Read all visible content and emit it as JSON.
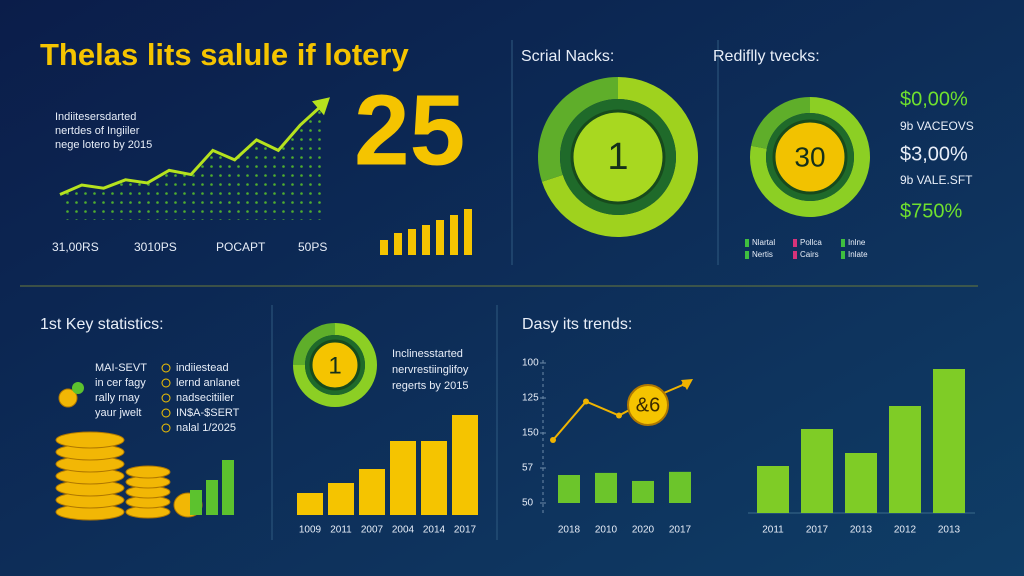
{
  "title": "Thelas lits salule if lotery",
  "hero_number": "25",
  "key_stats": {
    "title": "1st Key statistics:",
    "left": [
      "MAI-SEVT",
      "in cer fagy",
      "rally rnay",
      "yaur jwelt"
    ],
    "right": [
      "indiiestead",
      "lernd anlanet",
      "nadsecitiiler",
      "IN$A-$SERT",
      "nalal 1/2025"
    ]
  },
  "chart_data": [
    {
      "type": "line",
      "text": [
        "Indiitesersdarted",
        "nertdes of Ingiiler",
        "nege lotero by 2015"
      ],
      "values": [
        10,
        19,
        16,
        24,
        21,
        33,
        29,
        52,
        43,
        62,
        52,
        76,
        95
      ],
      "ylim": [
        0,
        100
      ],
      "x_labels": [
        "31,00RS",
        "3010PS",
        "POCAPT",
        "50PS"
      ],
      "color": "#b6e21e"
    },
    {
      "type": "bar",
      "values": [
        15,
        22,
        26,
        30,
        35,
        40,
        46
      ],
      "ylim": [
        0,
        50
      ],
      "color": "#f5c400"
    },
    {
      "type": "donut",
      "title": "Scrial Nacks:",
      "center_label": "1",
      "values": [
        70,
        30
      ],
      "colors": [
        "#9fd21e",
        "#5fae2a"
      ]
    },
    {
      "type": "donut",
      "title": "Rediflly tvecks:",
      "center_label": "30",
      "values": [
        78,
        22
      ],
      "colors": [
        "#8ccf24",
        "#5fae2a"
      ],
      "side_labels": [
        "$0,00%",
        "9b VACEOVS",
        "$3,00%",
        "9b VALE.SFT",
        "$750%"
      ],
      "legend": [
        {
          "name": "Nlartal",
          "color": "#3fbf3f"
        },
        {
          "name": "Pollca",
          "color": "#d6337a"
        },
        {
          "name": "Inlne",
          "color": "#3fbf3f"
        },
        {
          "name": "Nertis",
          "color": "#3fbf3f"
        },
        {
          "name": "Cairs",
          "color": "#d6337a"
        },
        {
          "name": "Inlate",
          "color": "#3fbf3f"
        }
      ]
    },
    {
      "type": "bar",
      "values": [
        25,
        35,
        55
      ],
      "ylim": [
        0,
        60
      ],
      "color": "#5cc22e"
    },
    {
      "type": "donut",
      "center_label": "1",
      "values": [
        75,
        25
      ],
      "colors": [
        "#8ccf24",
        "#5fae2a"
      ],
      "text": [
        "Inclinesstarted",
        "nervrestiinglifoy",
        "regerts by 2015"
      ]
    },
    {
      "type": "bar",
      "categories": [
        "1009",
        "2011",
        "2007",
        "2004",
        "2014",
        "2017"
      ],
      "values": [
        22,
        32,
        46,
        74,
        74,
        100
      ],
      "ylim": [
        0,
        100
      ],
      "color": "#f5c400"
    },
    {
      "type": "combo",
      "title": "Dasy its trends:",
      "annotation": "&6",
      "ylim": [
        -0.25,
        4
      ],
      "yticks": [
        {
          "value": 4,
          "label": "100"
        },
        {
          "value": 3,
          "label": "125"
        },
        {
          "value": 2,
          "label": "150"
        },
        {
          "value": 1,
          "label": "57"
        },
        {
          "value": 0,
          "label": "50"
        }
      ],
      "categories": [
        "2018",
        "2010",
        "2020",
        "2017"
      ],
      "bar_values": [
        0.8,
        0.86,
        0.63,
        0.89
      ],
      "line_values": [
        1.8,
        2.9,
        2.5,
        3.0,
        3.4
      ],
      "color": "#6cc52b",
      "line_color": "#f0b400"
    },
    {
      "type": "bar",
      "categories": [
        "2011",
        "2017",
        "2013",
        "2012",
        "2013"
      ],
      "values": [
        47,
        84,
        60,
        107,
        144
      ],
      "ylim": [
        0,
        150
      ],
      "color": "#7fcc26"
    }
  ]
}
